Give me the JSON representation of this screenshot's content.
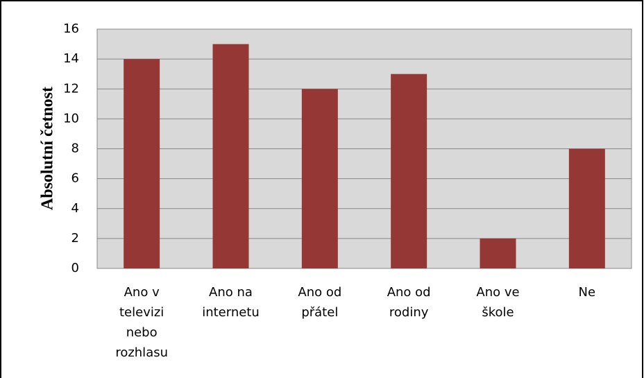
{
  "chart_data": {
    "type": "bar",
    "y_label": "Absolutní četnost",
    "categories": [
      "Ano v televizi nebo rozhlasu",
      "Ano na internetu",
      "Ano od přátel",
      "Ano od rodiny",
      "Ano ve škole",
      "Ne"
    ],
    "values": [
      14,
      15,
      12,
      13,
      2,
      8
    ],
    "color": "#953735",
    "ylim": [
      0,
      16
    ],
    "yticks": [
      0,
      2,
      4,
      6,
      8,
      10,
      12,
      14,
      16
    ],
    "grid": true
  }
}
